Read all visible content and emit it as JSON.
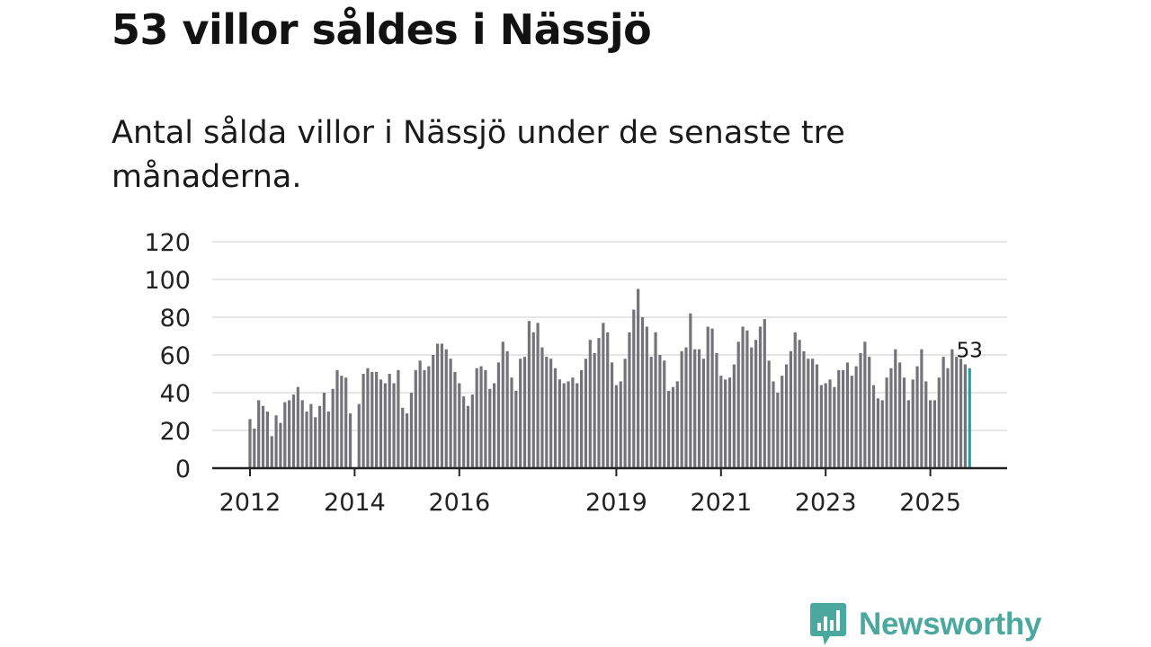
{
  "title": "53 villor såldes i Nässjö",
  "subtitle": "Antal sålda villor i Nässjö under de senaste tre månaderna.",
  "brand": {
    "name": "Newsworthy",
    "color": "#4aa89e",
    "icon": "newsworthy-bar-chart-icon"
  },
  "colors": {
    "bar": "#74737a",
    "highlight": "#1aa3a3",
    "grid": "#dddddd",
    "axis": "#222222"
  },
  "chart_data": {
    "type": "bar",
    "title": "53 villor såldes i Nässjö",
    "xlabel": "",
    "ylabel": "",
    "ylim": [
      0,
      120
    ],
    "yticks": [
      "0",
      "20",
      "40",
      "60",
      "80",
      "100",
      "120"
    ],
    "xticks": [
      "2012",
      "2014",
      "2016",
      "2019",
      "2021",
      "2023",
      "2025"
    ],
    "grid": true,
    "legend": "none",
    "start": "2012-01",
    "annotation": {
      "label": "53",
      "target": "last"
    },
    "values": [
      26,
      21,
      36,
      33,
      30,
      17,
      28,
      24,
      35,
      36,
      39,
      43,
      36,
      30,
      34,
      27,
      33,
      40,
      30,
      42,
      52,
      49,
      48,
      29,
      0,
      34,
      50,
      53,
      51,
      51,
      47,
      45,
      50,
      45,
      52,
      32,
      29,
      40,
      52,
      57,
      52,
      54,
      60,
      66,
      66,
      63,
      58,
      51,
      45,
      38,
      33,
      39,
      53,
      54,
      52,
      42,
      45,
      56,
      67,
      62,
      48,
      41,
      58,
      59,
      78,
      72,
      77,
      64,
      59,
      58,
      53,
      47,
      45,
      46,
      48,
      45,
      52,
      58,
      68,
      61,
      69,
      77,
      72,
      56,
      44,
      46,
      58,
      72,
      84,
      95,
      80,
      75,
      59,
      72,
      60,
      57,
      41,
      43,
      46,
      62,
      64,
      82,
      63,
      63,
      58,
      75,
      74,
      61,
      49,
      47,
      48,
      55,
      67,
      75,
      73,
      64,
      68,
      75,
      79,
      57,
      46,
      40,
      49,
      55,
      62,
      72,
      68,
      62,
      58,
      58,
      55,
      44,
      45,
      47,
      43,
      52,
      52,
      56,
      49,
      54,
      61,
      67,
      59,
      44,
      37,
      36,
      48,
      53,
      63,
      56,
      48,
      36,
      47,
      54,
      63,
      46,
      36,
      36,
      48,
      59,
      53,
      63,
      59,
      58,
      55,
      53
    ]
  }
}
